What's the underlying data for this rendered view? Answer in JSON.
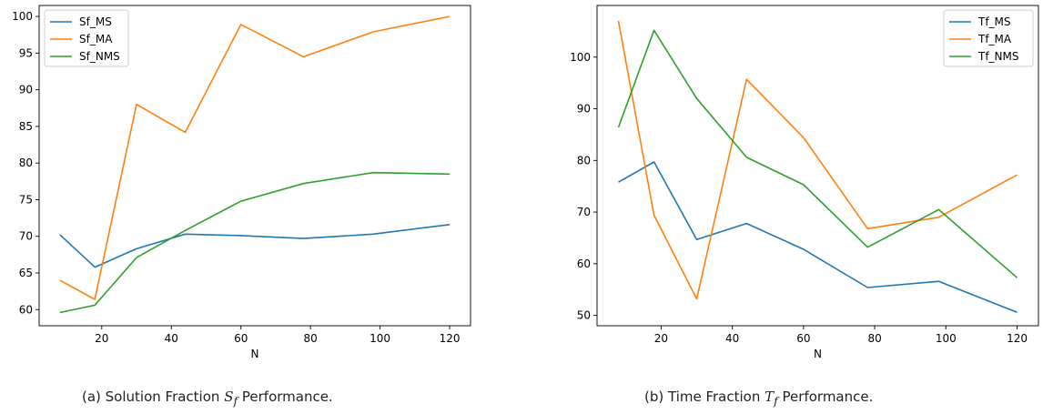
{
  "captions": [
    {
      "prefix": "(a) Solution Fraction ",
      "sym": "S",
      "sub": "f",
      "suffix": " Performance."
    },
    {
      "prefix": "(b) Time Fraction ",
      "sym": "T",
      "sub": "f",
      "suffix": " Performance."
    }
  ],
  "chart_data": [
    {
      "type": "line",
      "title": "",
      "xlabel": "N",
      "ylabel": "",
      "x": [
        8,
        18,
        30,
        44,
        60,
        78,
        98,
        120
      ],
      "xlim": [
        2,
        126
      ],
      "ylim": [
        57.8,
        101.5
      ],
      "xticks": [
        20,
        40,
        60,
        80,
        100,
        120
      ],
      "yticks": [
        60,
        65,
        70,
        75,
        80,
        85,
        90,
        95,
        100
      ],
      "legend": "top-left",
      "grid": false,
      "series": [
        {
          "name": "Sf_MS",
          "color": "#1f77b4",
          "values": [
            70.2,
            65.8,
            68.3,
            70.3,
            70.1,
            69.7,
            70.3,
            71.6
          ]
        },
        {
          "name": "Sf_MA",
          "color": "#ff7f0e",
          "values": [
            64.0,
            61.4,
            88.0,
            84.2,
            98.9,
            94.5,
            97.9,
            100.0
          ]
        },
        {
          "name": "Sf_NMS",
          "color": "#2ca02c",
          "values": [
            59.6,
            60.6,
            67.1,
            70.8,
            74.8,
            77.2,
            78.7,
            78.5
          ]
        }
      ]
    },
    {
      "type": "line",
      "title": "",
      "xlabel": "N",
      "ylabel": "",
      "x": [
        8,
        18,
        30,
        44,
        60,
        78,
        98,
        120
      ],
      "xlim": [
        2,
        126
      ],
      "ylim": [
        48,
        110
      ],
      "xticks": [
        20,
        40,
        60,
        80,
        100,
        120
      ],
      "yticks": [
        50,
        60,
        70,
        80,
        90,
        100
      ],
      "legend": "top-right",
      "grid": false,
      "series": [
        {
          "name": "Tf_MS",
          "color": "#1f77b4",
          "values": [
            75.8,
            79.7,
            64.7,
            67.8,
            62.8,
            55.4,
            56.6,
            50.6
          ]
        },
        {
          "name": "Tf_MA",
          "color": "#ff7f0e",
          "values": [
            107.0,
            69.4,
            53.2,
            95.7,
            84.4,
            66.8,
            69.0,
            77.2
          ]
        },
        {
          "name": "Tf_NMS",
          "color": "#2ca02c",
          "values": [
            86.4,
            105.2,
            92.0,
            80.6,
            75.3,
            63.2,
            70.5,
            57.3
          ]
        }
      ]
    }
  ]
}
